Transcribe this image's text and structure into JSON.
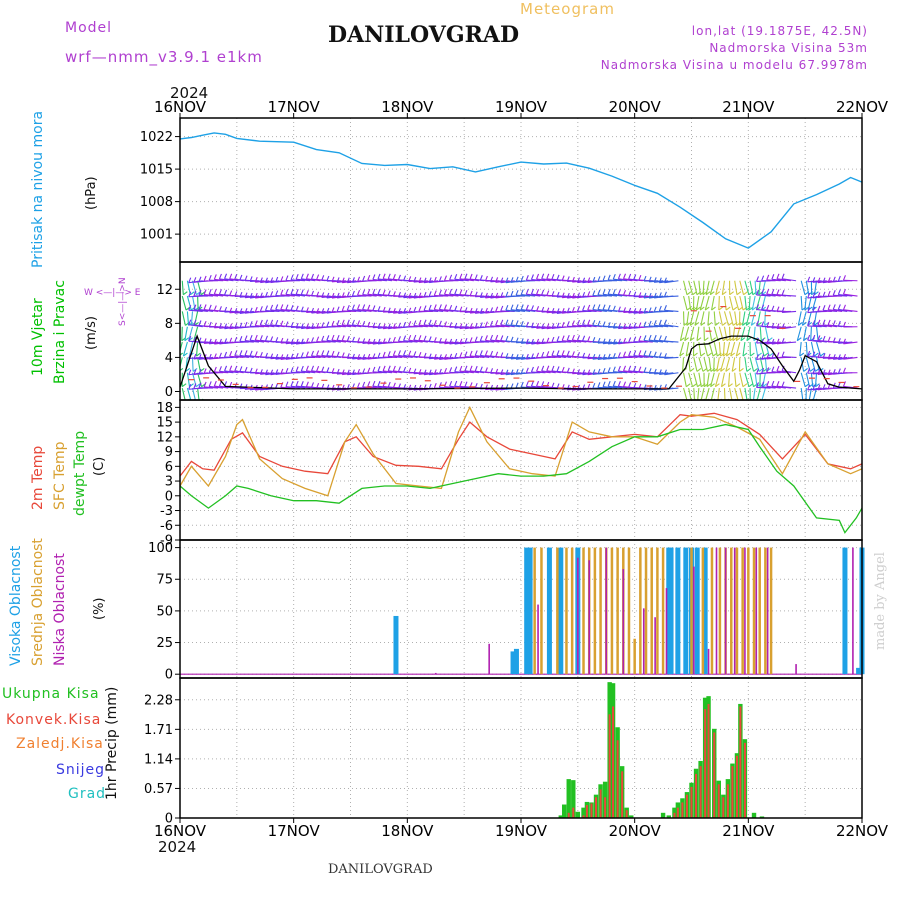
{
  "header": {
    "model_label": "Model",
    "model_name": "wrf—nmm_v3.9.1  e1km",
    "station": "DANILOVGRAD",
    "meteogram_label": "Meteogram",
    "lonlat": "lon,lat (19.1875E, 42.5N)",
    "elevation": "Nadmorska Visina 53m",
    "model_elevation": "Nadmorska Visina u modelu 67.9978m",
    "footer_station": "DANILOVGRAD",
    "watermark": "made by Angel",
    "year": "2024",
    "compass": "W  <—|—>  E",
    "compass_ns": "S<—|—>N"
  },
  "colors": {
    "pressure": "#1ea1e6",
    "wind_label": "#00c000",
    "temp2m": "#e8483a",
    "sfc": "#d8a030",
    "dew": "#22c022",
    "high": "#1ea1e6",
    "mid": "#d8a030",
    "low": "#b020b0",
    "purple_text": "#b040d0",
    "total_precip": "#22c022",
    "conv_precip": "#e8483a",
    "frz_precip": "#f08030",
    "snow": "#3a3ae0",
    "hail": "#20c0c0"
  },
  "chart_data": [
    {
      "type": "line",
      "panel": "pressure",
      "ylabel": "Pritisak na nivou mora",
      "unit": "(hPa)",
      "yticks": [
        1022,
        1015,
        1008,
        1001
      ],
      "ylim": [
        995,
        1026
      ],
      "x_ticks": [
        "16NOV",
        "17NOV",
        "18NOV",
        "19NOV",
        "20NOV",
        "21NOV",
        "22NOV"
      ],
      "x_day_range": [
        0,
        6
      ],
      "series": [
        {
          "x": [
            0,
            0.1,
            0.2,
            0.3,
            0.4,
            0.5,
            0.7,
            1.0,
            1.2,
            1.4,
            1.6,
            1.8,
            2.0,
            2.2,
            2.4,
            2.6,
            2.8,
            3.0,
            3.2,
            3.4,
            3.6,
            3.8,
            4.0,
            4.2,
            4.4,
            4.6,
            4.8,
            5.0,
            5.2,
            5.4,
            5.6,
            5.8,
            5.9,
            6.0
          ],
          "y": [
            1021.5,
            1021.8,
            1022.3,
            1022.8,
            1022.5,
            1021.6,
            1021.0,
            1020.8,
            1019.2,
            1018.5,
            1016.2,
            1015.8,
            1016.0,
            1015.1,
            1015.5,
            1014.4,
            1015.5,
            1016.5,
            1016.1,
            1016.3,
            1015.2,
            1013.5,
            1011.5,
            1009.8,
            1006.8,
            1003.5,
            1000.0,
            998.0,
            1001.5,
            1007.5,
            1009.5,
            1011.8,
            1013.2,
            1012.2
          ]
        }
      ]
    },
    {
      "type": "line",
      "panel": "wind",
      "ylabel": "10m Vjetar",
      "ylabel2": "Brzina i Pravac",
      "unit": "(m/s)",
      "yticks": [
        12,
        8,
        4,
        0
      ],
      "ylim": [
        -1,
        15.2
      ],
      "series": [
        {
          "name": "wind speed",
          "x": [
            0,
            0.1,
            0.15,
            0.25,
            0.4,
            1,
            2,
            3,
            3.5,
            4,
            4.3,
            4.45,
            4.5,
            4.55,
            4.65,
            4.75,
            4.85,
            5.0,
            5.1,
            5.2,
            5.3,
            5.4,
            5.45,
            5.5,
            5.6,
            5.7,
            5.8,
            6.0
          ],
          "y": [
            0.5,
            4.5,
            6.5,
            3.0,
            0.6,
            0.3,
            0.3,
            0.4,
            0.3,
            0.3,
            0.3,
            2.8,
            5.0,
            5.5,
            5.6,
            6.2,
            6.5,
            6.5,
            6.0,
            5.0,
            3.0,
            1.2,
            2.5,
            4.2,
            3.5,
            0.9,
            0.5,
            0.3
          ]
        }
      ]
    },
    {
      "type": "line",
      "panel": "temperature",
      "ylabel": "2m Temp",
      "ylabel2": "SFC Temp",
      "ylabel3": "dewpt Temp",
      "unit": "(C)",
      "yticks": [
        18,
        15,
        12,
        9,
        6,
        3,
        0,
        -3,
        -6,
        -9
      ],
      "ylim": [
        -9,
        19.5
      ],
      "series": [
        {
          "name": "2m Temp",
          "x": [
            0,
            0.1,
            0.2,
            0.3,
            0.45,
            0.55,
            0.7,
            0.9,
            1.1,
            1.3,
            1.45,
            1.55,
            1.7,
            1.9,
            2.1,
            2.3,
            2.45,
            2.55,
            2.7,
            2.9,
            3.1,
            3.3,
            3.45,
            3.6,
            3.8,
            4.0,
            4.2,
            4.4,
            4.5,
            4.7,
            4.9,
            5.1,
            5.3,
            5.5,
            5.7,
            5.9,
            6.0
          ],
          "y": [
            4,
            7,
            5.5,
            5.2,
            11.5,
            12.8,
            8,
            6,
            5,
            4.5,
            11,
            12,
            8,
            6.2,
            6,
            5.5,
            11.5,
            15,
            12,
            9.5,
            8.5,
            7.5,
            13,
            11.5,
            12,
            12.5,
            12,
            16.5,
            16.2,
            16.8,
            15.5,
            12.5,
            7.5,
            12.5,
            6.5,
            5.5,
            6.5
          ]
        },
        {
          "name": "SFC Temp",
          "x": [
            0,
            0.1,
            0.25,
            0.4,
            0.5,
            0.55,
            0.7,
            0.9,
            1.1,
            1.3,
            1.45,
            1.55,
            1.7,
            1.9,
            2.1,
            2.3,
            2.45,
            2.55,
            2.7,
            2.9,
            3.1,
            3.3,
            3.45,
            3.6,
            3.8,
            4.0,
            4.2,
            4.4,
            4.5,
            4.7,
            4.9,
            5.1,
            5.3,
            5.5,
            5.7,
            5.9,
            6.0
          ],
          "y": [
            2,
            6,
            2,
            8,
            14.5,
            15.5,
            7.5,
            3.5,
            1.5,
            0,
            11,
            14.5,
            8.5,
            2.5,
            2,
            1.5,
            13,
            18,
            11,
            5.5,
            4.5,
            4,
            15,
            13,
            12,
            12,
            10.5,
            15,
            16.5,
            16,
            14,
            11.5,
            4.5,
            13,
            6.5,
            4.5,
            5.5
          ]
        },
        {
          "name": "dewpt Temp",
          "x": [
            0,
            0.1,
            0.25,
            0.4,
            0.5,
            0.6,
            0.8,
            1.0,
            1.2,
            1.4,
            1.6,
            1.8,
            2.0,
            2.2,
            2.4,
            2.6,
            2.8,
            3.0,
            3.2,
            3.4,
            3.6,
            3.8,
            4.0,
            4.2,
            4.4,
            4.6,
            4.8,
            5.0,
            5.1,
            5.25,
            5.4,
            5.6,
            5.8,
            5.85,
            5.95,
            6.0
          ],
          "y": [
            2,
            0,
            -2.5,
            0,
            2,
            1.5,
            0,
            -1,
            -1,
            -1.5,
            1.5,
            2,
            2,
            1.5,
            2.5,
            3.5,
            4.5,
            4,
            4,
            4.5,
            7,
            10,
            12,
            12,
            13.5,
            13.5,
            14.5,
            13.5,
            10,
            5,
            2,
            -4.5,
            -5,
            -7.5,
            -4.5,
            -2.5
          ]
        }
      ]
    },
    {
      "type": "bar",
      "panel": "cloudiness",
      "ylabel": "Visoka Oblacnost",
      "ylabel2": "Srednja Oblacnost",
      "ylabel3": "Niska Oblacnost",
      "unit": "(%)",
      "yticks": [
        100,
        75,
        50,
        25,
        0
      ],
      "ylim": [
        -3,
        106
      ],
      "series": [
        {
          "name": "Visoka Oblacnost",
          "x": [
            1.9,
            2.93,
            2.96,
            3.05,
            3.08,
            3.25,
            3.35,
            3.5,
            4.3,
            4.32,
            4.38,
            4.45,
            4.5,
            4.55,
            4.62,
            5.85,
            5.97,
            6.0
          ],
          "y": [
            46,
            18,
            20,
            100,
            100,
            100,
            100,
            100,
            100,
            100,
            100,
            100,
            100,
            100,
            100,
            100,
            5,
            100
          ]
        },
        {
          "name": "Srednja Oblacnost",
          "x": [
            3.12,
            3.18,
            3.32,
            3.4,
            3.45,
            3.55,
            3.6,
            3.65,
            3.7,
            3.75,
            3.8,
            3.85,
            3.9,
            3.95,
            4.0,
            4.05,
            4.1,
            4.15,
            4.2,
            4.25,
            4.5,
            4.6,
            4.68,
            4.75,
            4.8,
            4.85,
            4.9,
            4.95,
            5.0,
            5.05,
            5.1,
            5.15,
            5.2
          ],
          "y": [
            100,
            100,
            100,
            100,
            100,
            100,
            100,
            100,
            100,
            100,
            100,
            100,
            100,
            100,
            28,
            100,
            100,
            100,
            100,
            100,
            100,
            100,
            100,
            100,
            100,
            100,
            100,
            100,
            100,
            100,
            100,
            100,
            100
          ]
        },
        {
          "name": "Niska Oblacnost",
          "x": [
            2.25,
            2.72,
            3.15,
            3.5,
            3.6,
            3.75,
            3.9,
            4.08,
            4.18,
            4.28,
            4.52,
            4.65,
            4.72,
            4.8,
            4.88,
            4.97,
            5.07,
            5.17,
            5.42,
            5.92
          ],
          "y": [
            1,
            24,
            55,
            92,
            90,
            100,
            83,
            52,
            45,
            68,
            85,
            20,
            100,
            100,
            100,
            100,
            100,
            100,
            8,
            100
          ]
        }
      ]
    },
    {
      "type": "bar",
      "panel": "precipitation",
      "ylabel": "1hr Precip (mm)",
      "legend": [
        "Ukupna Kisa",
        "Konvek.Kisa",
        "Zaledj.Kisa",
        "Snijeg",
        "Grad"
      ],
      "yticks": [
        2.28,
        1.71,
        1.14,
        0.57,
        0
      ],
      "ylim": [
        0,
        2.7
      ],
      "x_ticks": [
        "16NOV",
        "17NOV",
        "18NOV",
        "19NOV",
        "20NOV",
        "21NOV",
        "22NOV"
      ],
      "series": [
        {
          "name": "Ukupna Kisa",
          "x": [
            3.35,
            3.38,
            3.42,
            3.46,
            3.5,
            3.55,
            3.58,
            3.62,
            3.66,
            3.7,
            3.74,
            3.78,
            3.81,
            3.85,
            3.89,
            3.93,
            3.97,
            4.25,
            4.3,
            4.35,
            4.38,
            4.42,
            4.46,
            4.5,
            4.54,
            4.58,
            4.62,
            4.65,
            4.7,
            4.74,
            4.78,
            4.82,
            4.86,
            4.9,
            4.93,
            4.97,
            5.05,
            5.12
          ],
          "y": [
            0.05,
            0.26,
            0.75,
            0.73,
            0.12,
            0.2,
            0.31,
            0.3,
            0.45,
            0.65,
            0.7,
            2.62,
            2.6,
            1.75,
            1.0,
            0.2,
            0.05,
            0.1,
            0.05,
            0.2,
            0.3,
            0.38,
            0.5,
            0.68,
            0.95,
            1.1,
            2.32,
            2.35,
            1.72,
            0.72,
            0.45,
            0.75,
            1.05,
            1.25,
            2.2,
            1.52,
            0.1,
            0.03
          ]
        },
        {
          "name": "Konvek.Kisa",
          "x": [
            3.42,
            3.46,
            3.55,
            3.58,
            3.62,
            3.66,
            3.7,
            3.74,
            3.78,
            3.81,
            3.85,
            3.89,
            3.93,
            4.35,
            4.38,
            4.42,
            4.46,
            4.5,
            4.54,
            4.58,
            4.62,
            4.65,
            4.7,
            4.74,
            4.78,
            4.82,
            4.86,
            4.9,
            4.93,
            4.97
          ],
          "y": [
            0.1,
            0.2,
            0.05,
            0.25,
            0.28,
            0.4,
            0.55,
            0.4,
            2.0,
            2.15,
            1.5,
            0.9,
            0.15,
            0.1,
            0.2,
            0.3,
            0.45,
            0.6,
            0.85,
            1.0,
            2.1,
            2.2,
            1.65,
            0.65,
            0.4,
            0.65,
            1.0,
            1.2,
            2.15,
            1.45
          ]
        }
      ]
    }
  ]
}
